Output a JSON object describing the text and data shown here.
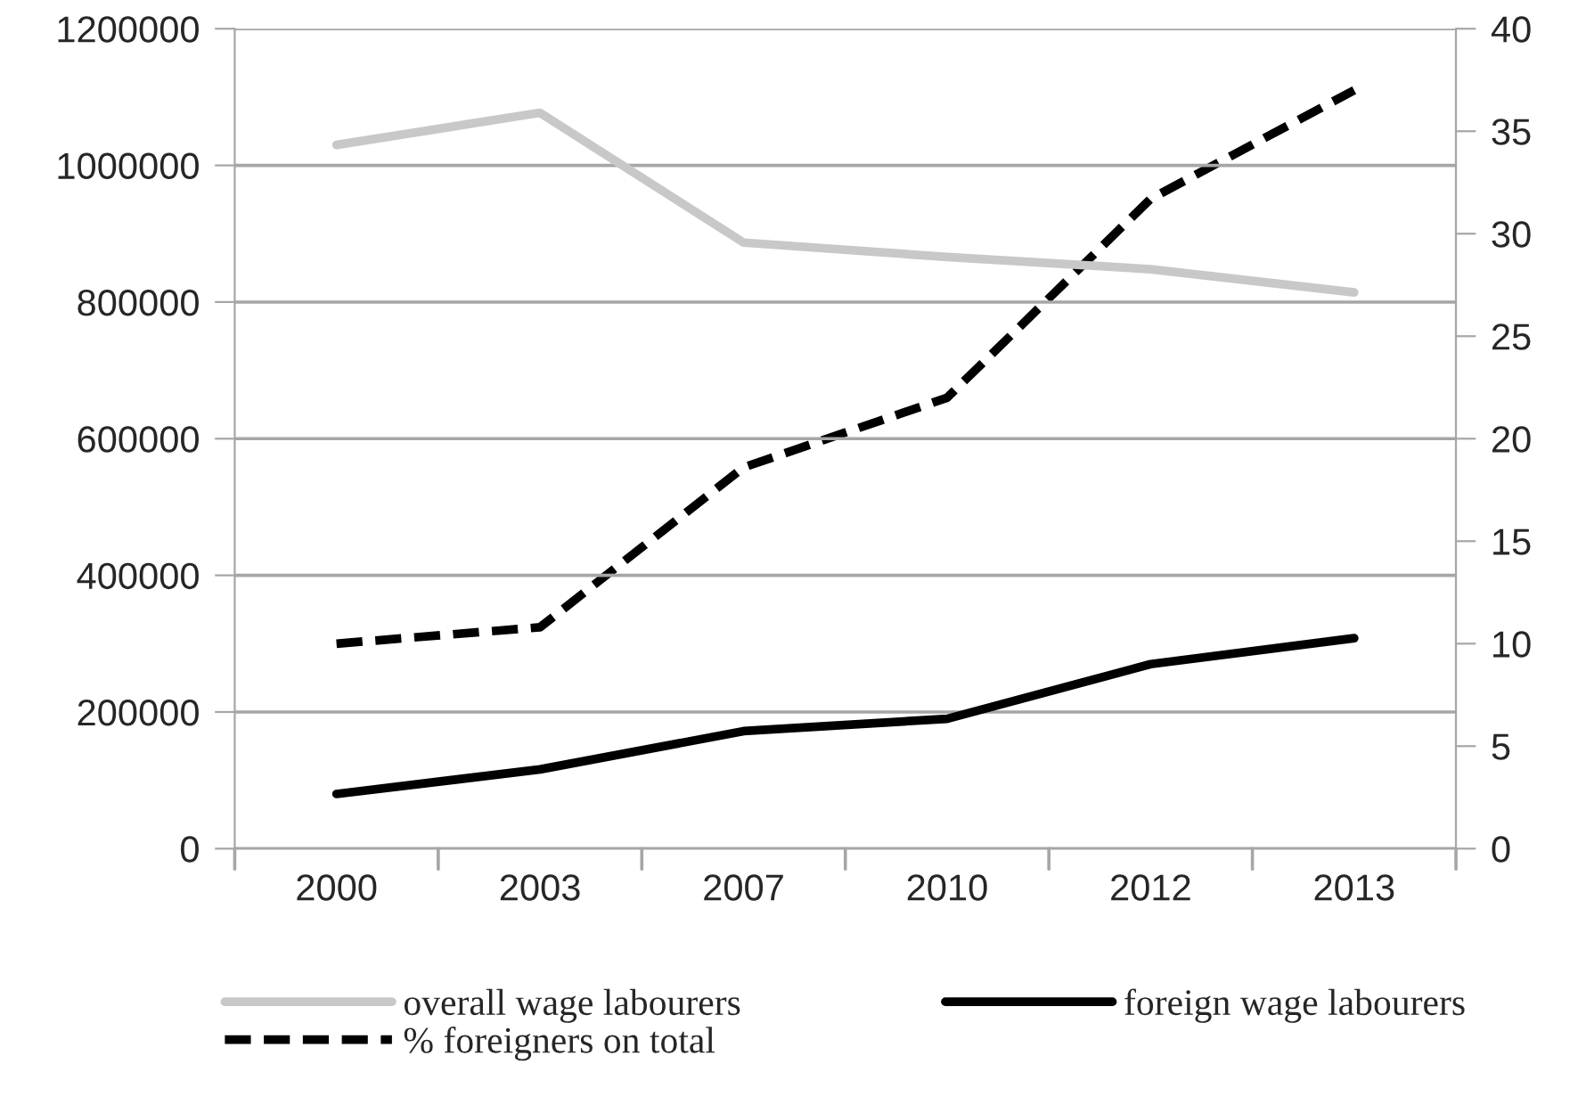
{
  "chart_data": {
    "type": "line",
    "categories": [
      "2000",
      "2003",
      "2007",
      "2010",
      "2012",
      "2013"
    ],
    "series": [
      {
        "name": "overall wage labourers",
        "color": "#c8c8c8",
        "values": [
          1030000,
          1077000,
          887000,
          866000,
          848000,
          814000
        ],
        "line_style": "solid"
      },
      {
        "name": "foreign wage labourers",
        "color": "#000000",
        "values": [
          80000,
          116000,
          172000,
          190000,
          270000,
          308000
        ],
        "line_style": "solid"
      },
      {
        "name": "% foreigners on total",
        "color": "#000000",
        "values": [
          10.0,
          10.8,
          18.6,
          22.0,
          31.7,
          37.0
        ],
        "line_style": "dashed",
        "axis": "y2"
      }
    ],
    "ylim": [
      0,
      1200000
    ],
    "yticks": [
      0,
      200000,
      400000,
      600000,
      800000,
      1000000,
      1200000
    ],
    "y2lim": [
      0,
      40
    ],
    "y2ticks": [
      0,
      5,
      10,
      15,
      20,
      25,
      30,
      35,
      40
    ],
    "grid": "y",
    "legend": "bottom",
    "marker": "none"
  }
}
